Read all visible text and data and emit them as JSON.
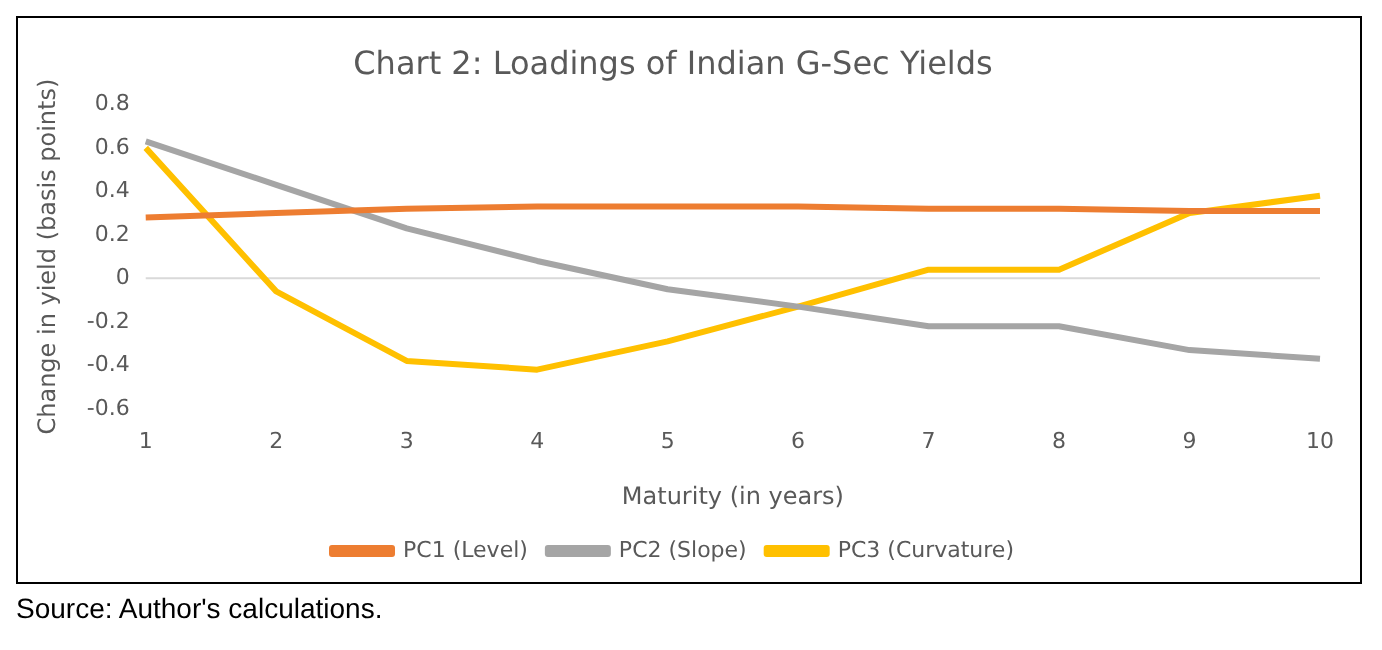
{
  "chart_data": {
    "type": "line",
    "title": "Chart 2: Loadings of Indian G-Sec Yields",
    "xlabel": "Maturity (in years)",
    "ylabel": "Change in yield (basis points)",
    "categories": [
      "1",
      "2",
      "3",
      "4",
      "5",
      "6",
      "7",
      "8",
      "9",
      "10"
    ],
    "series": [
      {
        "name": "PC1 (Level)",
        "color": "#ed7d31",
        "values": [
          0.28,
          0.3,
          0.32,
          0.33,
          0.33,
          0.33,
          0.32,
          0.32,
          0.31,
          0.31
        ]
      },
      {
        "name": "PC2 (Slope)",
        "color": "#a5a5a5",
        "values": [
          0.63,
          0.43,
          0.23,
          0.08,
          -0.05,
          -0.13,
          -0.22,
          -0.22,
          -0.33,
          -0.37
        ]
      },
      {
        "name": "PC3 (Curvature)",
        "color": "#ffc000",
        "values": [
          0.6,
          -0.06,
          -0.38,
          -0.42,
          -0.29,
          -0.13,
          0.04,
          0.04,
          0.3,
          0.38
        ]
      }
    ],
    "ylim": [
      -0.6,
      0.8
    ],
    "ref_lines": [
      {
        "axis": "y",
        "value": 0,
        "color": "#d9d9d9"
      }
    ],
    "yticks": [
      -0.6,
      -0.4,
      -0.2,
      0,
      0.2,
      0.4,
      0.6,
      0.8
    ],
    "grid": false,
    "legend": "bottom",
    "marker": "none",
    "line_style": "solid",
    "annotations": [
      "Source: Author's calculations."
    ]
  }
}
